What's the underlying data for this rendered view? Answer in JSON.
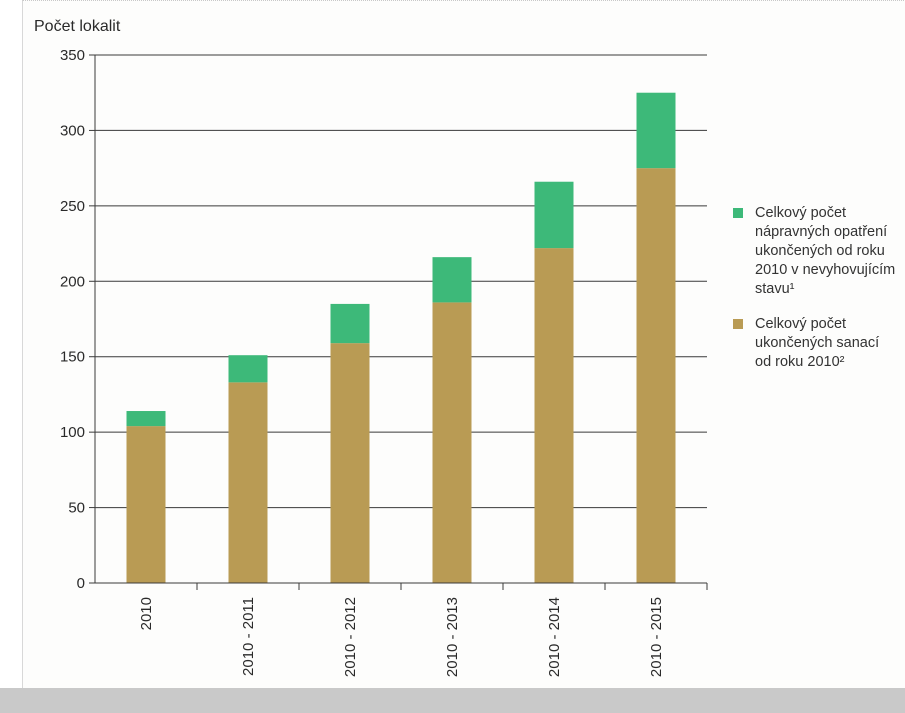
{
  "chart_data": {
    "type": "bar",
    "stacked": true,
    "ylabel": "Počet lokalit",
    "ylim": [
      0,
      350
    ],
    "yticks": [
      0,
      50,
      100,
      150,
      200,
      250,
      300,
      350
    ],
    "grid": true,
    "legend_position": "right",
    "categories": [
      "2010",
      "2010 - 2011",
      "2010 - 2012",
      "2010 - 2013",
      "2010 - 2014",
      "2010 - 2015"
    ],
    "series": [
      {
        "name": "Celkový počet ukončených sanací od roku 2010²",
        "color": "#b99b54",
        "values": [
          104,
          133,
          159,
          186,
          222,
          275
        ]
      },
      {
        "name": "Celkový počet nápravných opatření ukončených od roku 2010 v nevyhovujícím stavu¹",
        "color": "#3db979",
        "values": [
          10,
          18,
          26,
          30,
          44,
          50
        ]
      }
    ]
  },
  "legend": {
    "items": [
      {
        "label": "Celkový počet\nnápravných opatření\nukončených od roku\n2010 v nevyhovujícím\nstavu¹",
        "color": "#3db979"
      },
      {
        "label": "Celkový počet\nukončených sanací\nod roku 2010²",
        "color": "#b99b54"
      }
    ]
  }
}
